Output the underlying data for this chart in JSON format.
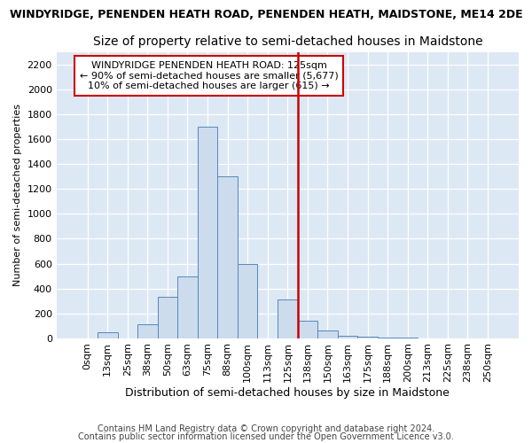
{
  "title": "WINDYRIDGE, PENENDEN HEATH ROAD, PENENDEN HEATH, MAIDSTONE, ME14 2DE",
  "subtitle": "Size of property relative to semi-detached houses in Maidstone",
  "xlabel": "Distribution of semi-detached houses by size in Maidstone",
  "ylabel": "Number of semi-detached properties",
  "footer_line1": "Contains HM Land Registry data © Crown copyright and database right 2024.",
  "footer_line2": "Contains public sector information licensed under the Open Government Licence v3.0.",
  "bar_labels": [
    "0sqm",
    "13sqm",
    "25sqm",
    "38sqm",
    "50sqm",
    "63sqm",
    "75sqm",
    "88sqm",
    "100sqm",
    "113sqm",
    "125sqm",
    "138sqm",
    "150sqm",
    "163sqm",
    "175sqm",
    "188sqm",
    "200sqm",
    "213sqm",
    "225sqm",
    "238sqm",
    "250sqm"
  ],
  "bar_values": [
    0,
    50,
    0,
    110,
    330,
    500,
    1700,
    1300,
    600,
    0,
    310,
    140,
    60,
    20,
    10,
    5,
    2,
    0,
    0,
    0,
    0
  ],
  "bar_color": "#ccdcec",
  "bar_edge_color": "#5588bb",
  "vline_color": "#cc0000",
  "vline_x_index": 10,
  "annotation_text_line1": "WINDYRIDGE PENENDEN HEATH ROAD: 125sqm",
  "annotation_text_line2": "← 90% of semi-detached houses are smaller (5,677)",
  "annotation_text_line3": "10% of semi-detached houses are larger (615) →",
  "annotation_box_color": "#cc0000",
  "ylim": [
    0,
    2300
  ],
  "yticks": [
    0,
    200,
    400,
    600,
    800,
    1000,
    1200,
    1400,
    1600,
    1800,
    2000,
    2200
  ],
  "background_color": "#dde8f5",
  "title_fontsize": 9,
  "subtitle_fontsize": 10,
  "ylabel_fontsize": 8,
  "xlabel_fontsize": 9,
  "tick_fontsize": 8,
  "annotation_fontsize": 8,
  "footer_fontsize": 7,
  "footer_color": "#444444"
}
